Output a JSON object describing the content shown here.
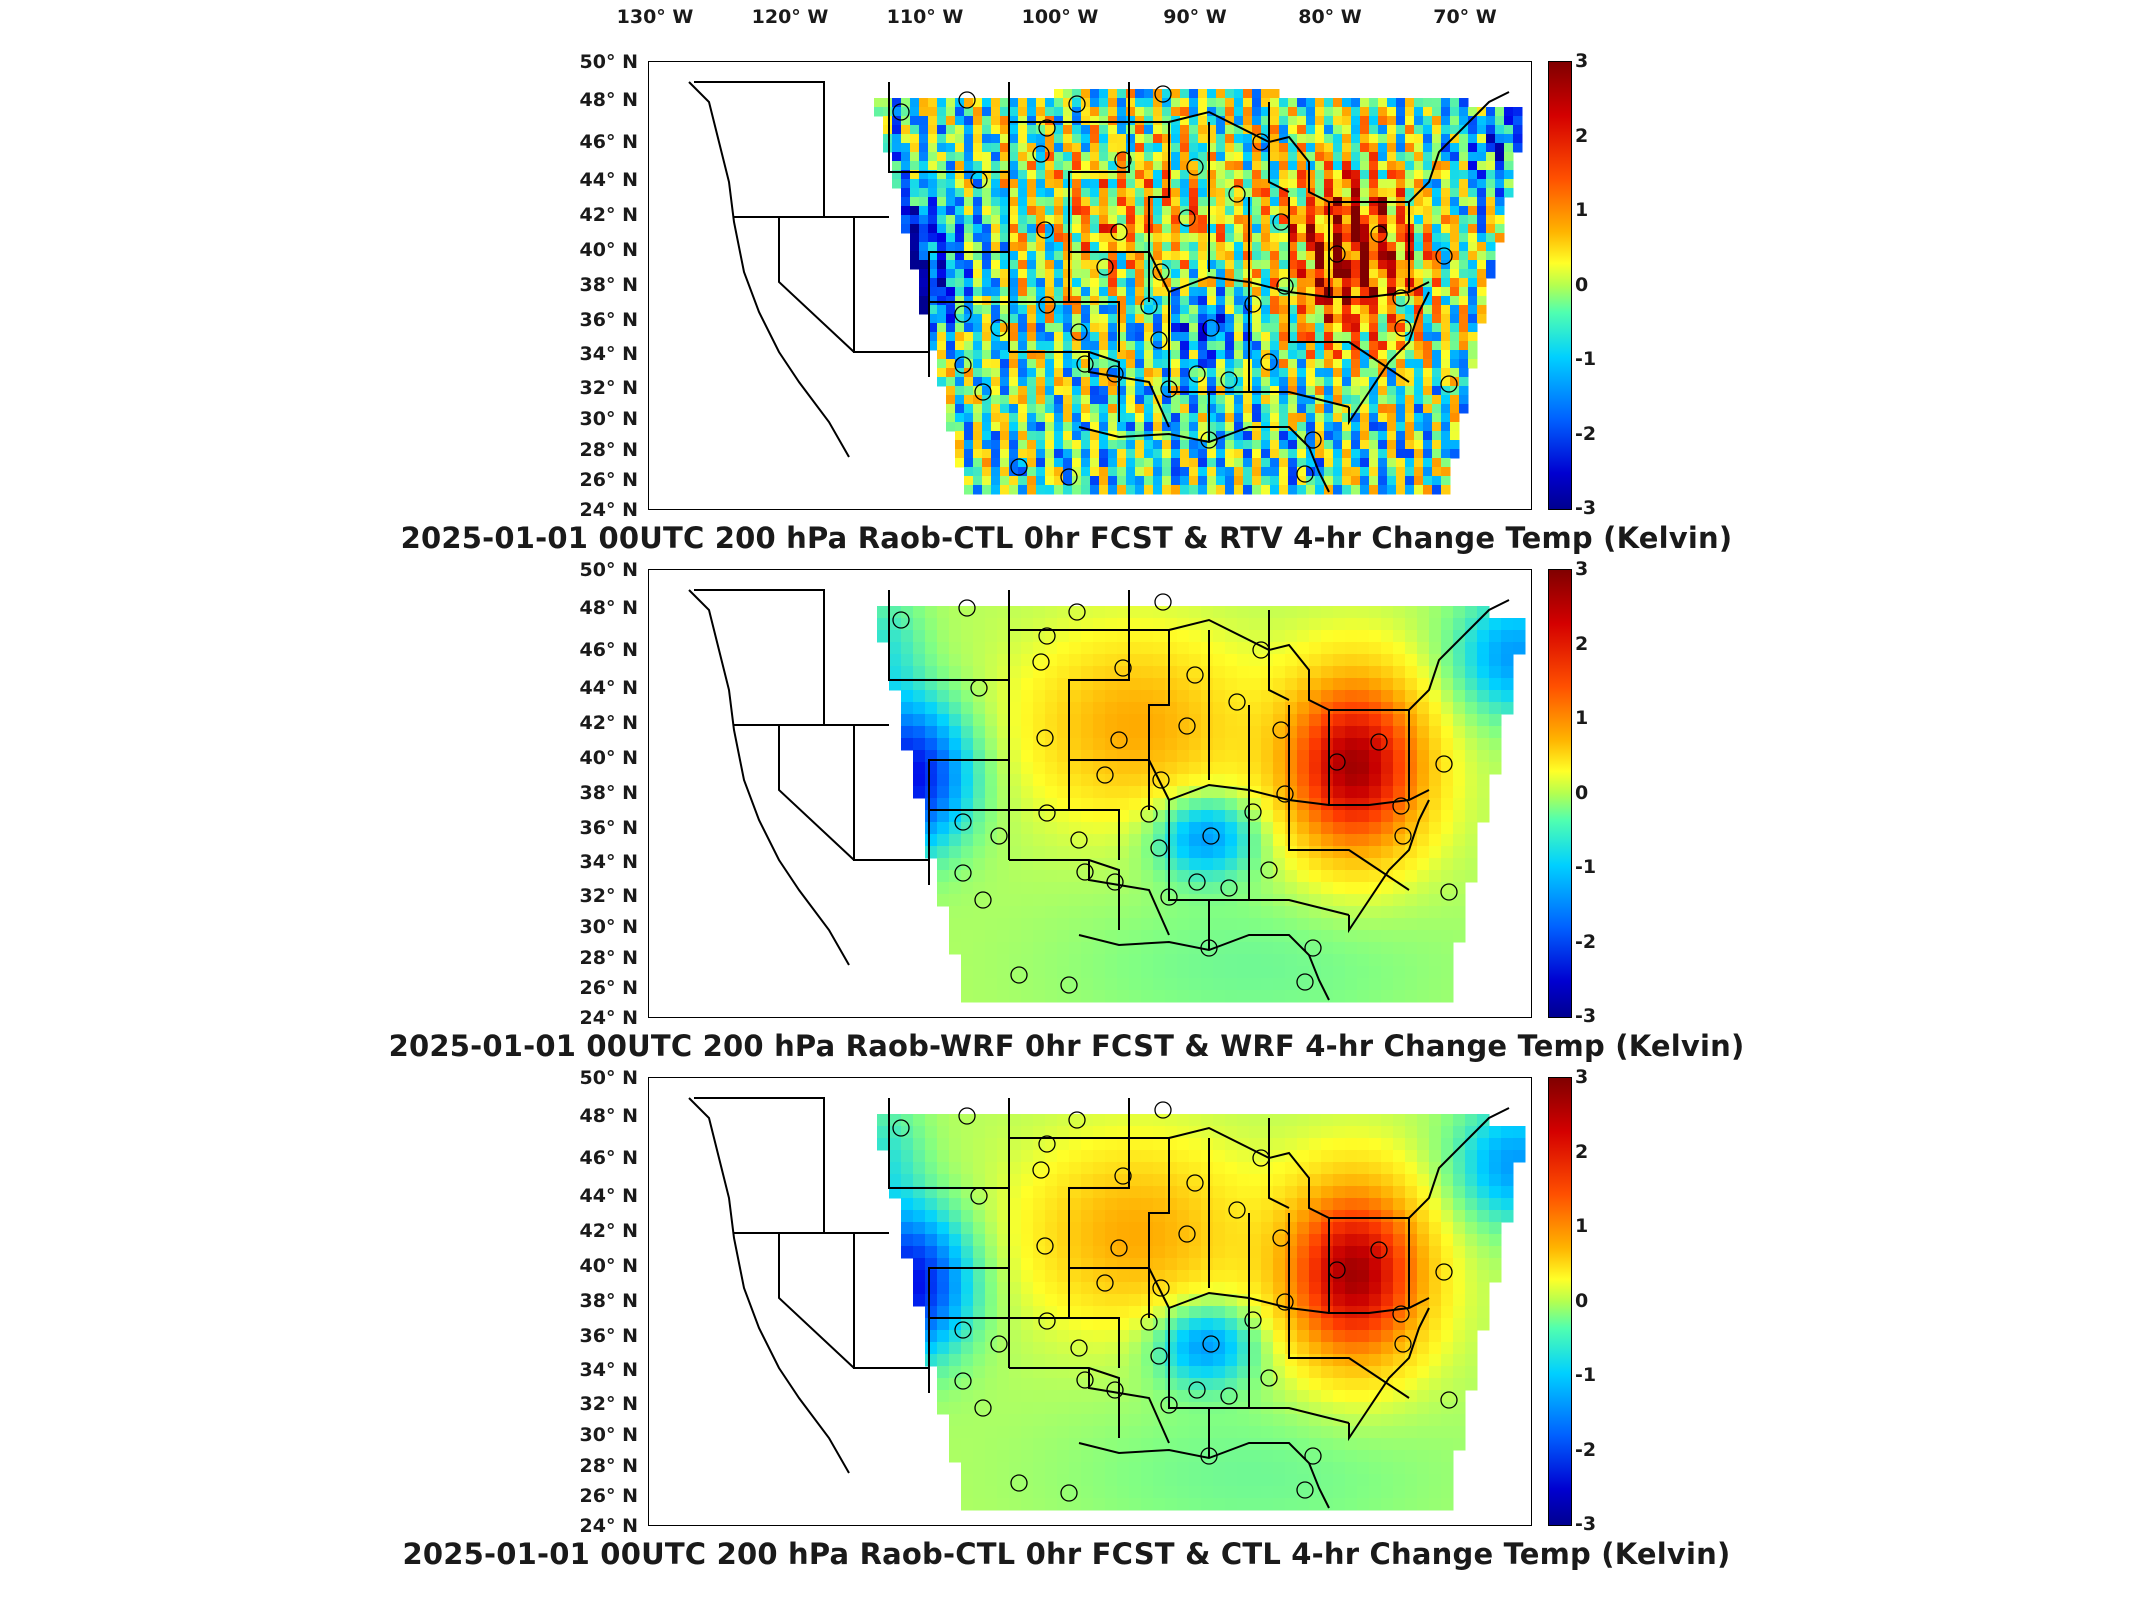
{
  "longitude_labels": [
    "130° W",
    "120° W",
    "110° W",
    "100° W",
    "90° W",
    "80° W",
    "70° W"
  ],
  "latitude_labels": [
    "50° N",
    "48° N",
    "46° N",
    "44° N",
    "42° N",
    "40° N",
    "38° N",
    "36° N",
    "34° N",
    "32° N",
    "30° N",
    "28° N",
    "26° N",
    "24° N"
  ],
  "colorbar_ticks": [
    "3",
    "2",
    "1",
    "0",
    "-1",
    "-2",
    "-3"
  ],
  "panels": [
    {
      "caption": "2025-01-01 00UTC 200 hPa Raob-CTL 0hr FCST & RTV 4-hr Change Temp (Kelvin)",
      "field": "noisy"
    },
    {
      "caption": "2025-01-01 00UTC 200 hPa Raob-WRF 0hr FCST & WRF 4-hr Change Temp (Kelvin)",
      "field": "smooth"
    },
    {
      "caption": "2025-01-01 00UTC 200 hPa Raob-CTL 0hr FCST & CTL 4-hr Change Temp (Kelvin)",
      "field": "smooth"
    }
  ],
  "colors": {
    "max": "#800000",
    "zero": "#b4ff50",
    "min": "#000090"
  },
  "colorbar_range": [
    -3,
    3
  ]
}
